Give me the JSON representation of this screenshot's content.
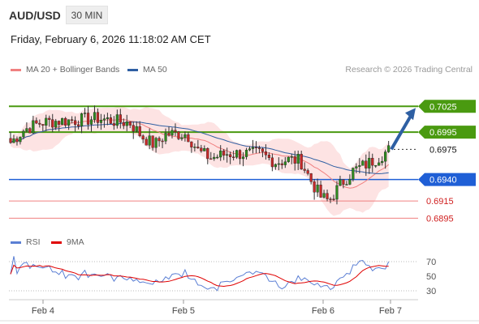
{
  "header": {
    "symbol": "AUD/USD",
    "timeframe": "30 MIN",
    "datetime": "Friday, February 6, 2026 11:18:02 AM CET"
  },
  "legend": {
    "ma20_label": "MA 20 + Bollinger Bands",
    "ma20_color": "#f08080",
    "ma50_label": "MA 50",
    "ma50_color": "#2e5fa3",
    "credit": "Research © 2026 Trading Central"
  },
  "rsi_legend": {
    "rsi_label": "RSI",
    "rsi_color": "#5b7fd4",
    "ma_label": "9MA",
    "ma_color": "#e00000"
  },
  "colors": {
    "green": "#4a9a10",
    "blue": "#1f5fd6",
    "red": "#f08080",
    "bull": "#2e8b1e",
    "bear": "#c62828",
    "band": "#fde3e3",
    "arrow": "#2e5fa3"
  },
  "chart_data": [
    {
      "type": "candlestick",
      "x_ticks": [
        "Feb 4",
        "Feb 5",
        "Feb 6",
        "Feb 7"
      ],
      "ylim": [
        0.6885,
        0.7045
      ],
      "current_price": 0.6975,
      "forecast_target": 0.7025,
      "levels": [
        {
          "value": 0.7025,
          "label": "0.7025",
          "kind": "resistance"
        },
        {
          "value": 0.6995,
          "label": "0.6995",
          "kind": "resistance"
        },
        {
          "value": 0.6975,
          "label": "0.6975",
          "kind": "last"
        },
        {
          "value": 0.694,
          "label": "0.6940",
          "kind": "pivot"
        },
        {
          "value": 0.6915,
          "label": "0.6915",
          "kind": "support"
        },
        {
          "value": 0.6895,
          "label": "0.6895",
          "kind": "support"
        }
      ]
    },
    {
      "type": "line",
      "title": "RSI",
      "ylim": [
        20,
        80
      ],
      "y_ticks": [
        "70",
        "50",
        "30"
      ],
      "levels": [
        70,
        30
      ],
      "rsi_last": 70,
      "ma_last": 63
    }
  ]
}
